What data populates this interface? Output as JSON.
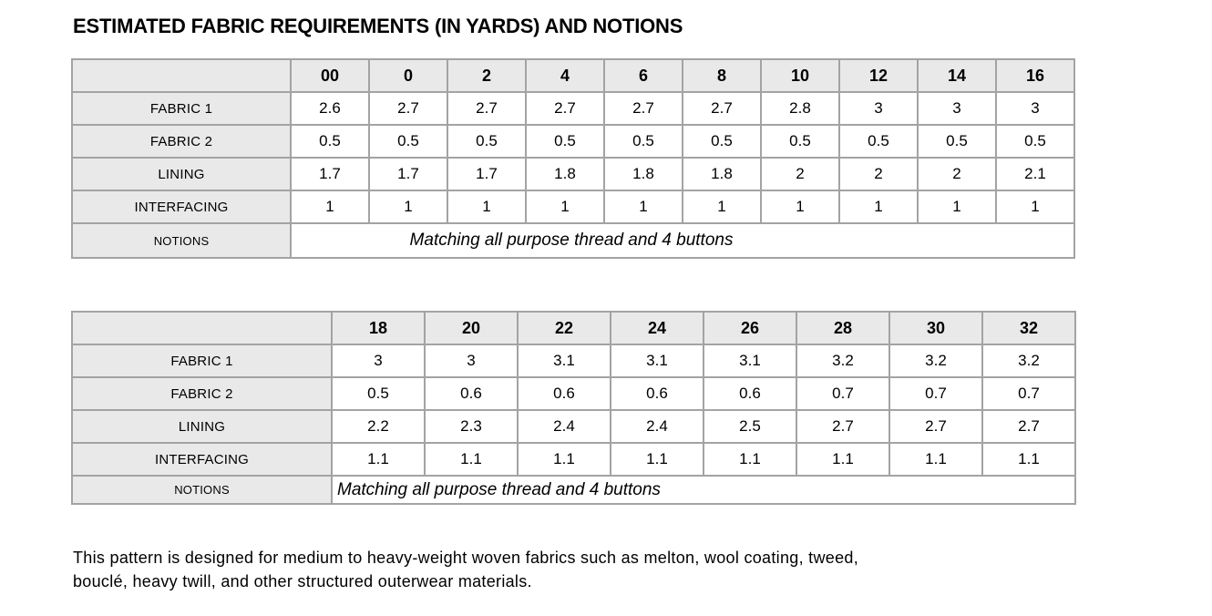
{
  "page": {
    "title": "ESTIMATED FABRIC REQUIREMENTS (IN YARDS) AND NOTIONS"
  },
  "tables": [
    {
      "sizes": [
        "00",
        "0",
        "2",
        "4",
        "6",
        "8",
        "10",
        "12",
        "14",
        "16"
      ],
      "rows": [
        {
          "label": "FABRIC 1",
          "values": [
            "2.6",
            "2.7",
            "2.7",
            "2.7",
            "2.7",
            "2.7",
            "2.8",
            "3",
            "3",
            "3"
          ]
        },
        {
          "label": "FABRIC 2",
          "values": [
            "0.5",
            "0.5",
            "0.5",
            "0.5",
            "0.5",
            "0.5",
            "0.5",
            "0.5",
            "0.5",
            "0.5"
          ]
        },
        {
          "label": "LINING",
          "values": [
            "1.7",
            "1.7",
            "1.7",
            "1.8",
            "1.8",
            "1.8",
            "2",
            "2",
            "2",
            "2.1"
          ]
        },
        {
          "label": "INTERFACING",
          "values": [
            "1",
            "1",
            "1",
            "1",
            "1",
            "1",
            "1",
            "1",
            "1",
            "1"
          ]
        }
      ],
      "notions": {
        "label": "NOTIONS",
        "text": "Matching all purpose thread and 4 buttons",
        "align": "center"
      }
    },
    {
      "sizes": [
        "18",
        "20",
        "22",
        "24",
        "26",
        "28",
        "30",
        "32"
      ],
      "rows": [
        {
          "label": "FABRIC 1",
          "values": [
            "3",
            "3",
            "3.1",
            "3.1",
            "3.1",
            "3.2",
            "3.2",
            "3.2"
          ]
        },
        {
          "label": "FABRIC 2",
          "values": [
            "0.5",
            "0.6",
            "0.6",
            "0.6",
            "0.6",
            "0.7",
            "0.7",
            "0.7"
          ]
        },
        {
          "label": "LINING",
          "values": [
            "2.2",
            "2.3",
            "2.4",
            "2.4",
            "2.5",
            "2.7",
            "2.7",
            "2.7"
          ]
        },
        {
          "label": "INTERFACING",
          "values": [
            "1.1",
            "1.1",
            "1.1",
            "1.1",
            "1.1",
            "1.1",
            "1.1",
            "1.1"
          ]
        }
      ],
      "notions": {
        "label": "NOTIONS",
        "text": "Matching all purpose thread and 4 buttons",
        "align": "left"
      }
    }
  ],
  "footer": {
    "lines": [
      "This pattern is designed for medium to heavy-weight woven fabrics such as melton, wool coating, tweed,",
      "bouclé, heavy twill, and other structured outerwear materials."
    ]
  },
  "colors": {
    "cell_shade": "#e9e9e9",
    "table_border": "#a3a3a3",
    "text": "#000000",
    "background": "#ffffff"
  }
}
